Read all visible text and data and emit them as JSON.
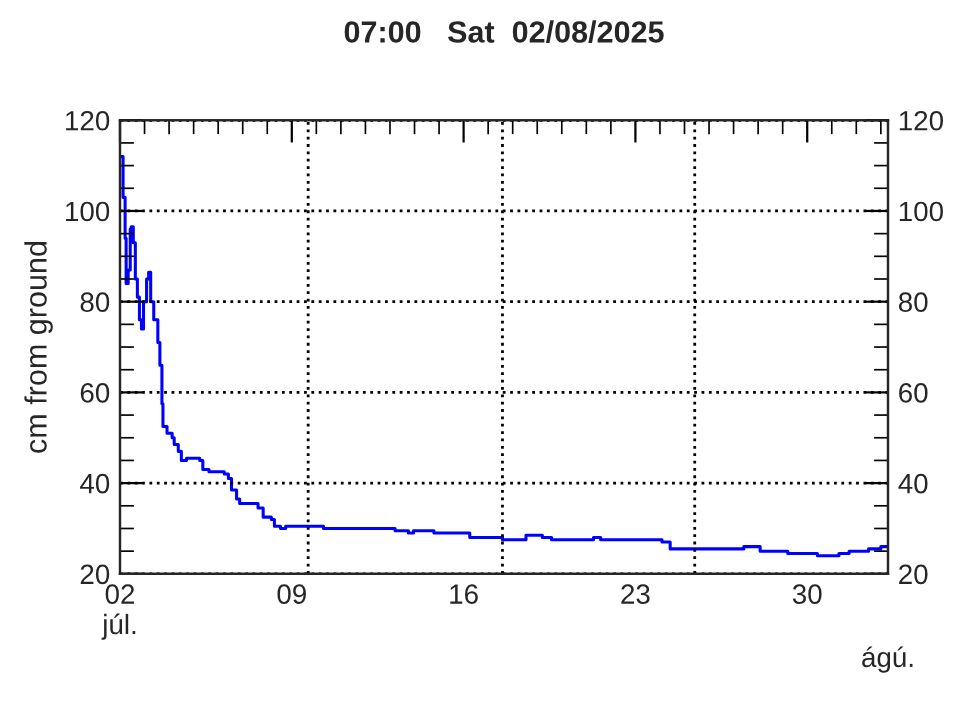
{
  "chart_data": {
    "type": "step",
    "title": "07:00   Sat  02/08/2025",
    "ylabel": "cm from ground",
    "x": [
      "2025-07-02T01:00",
      "2025-07-02T03:00",
      "2025-07-02T05:00",
      "2025-07-02T06:00",
      "2025-07-02T08:00",
      "2025-07-02T10:00",
      "2025-07-02T11:00",
      "2025-07-02T13:00",
      "2025-07-02T15:00",
      "2025-07-02T17:00",
      "2025-07-02T19:00",
      "2025-07-02T21:00",
      "2025-07-02T23:00",
      "2025-07-03T02:00",
      "2025-07-03T04:00",
      "2025-07-03T06:00",
      "2025-07-03T09:00",
      "2025-07-03T13:00",
      "2025-07-03T15:00",
      "2025-07-03T17:00",
      "2025-07-03T18:00",
      "2025-07-03T22:00",
      "2025-07-04T03:00",
      "2025-07-04T05:00",
      "2025-07-04T09:00",
      "2025-07-04T12:00",
      "2025-07-04T17:00",
      "2025-07-05T06:00",
      "2025-07-05T09:00",
      "2025-07-05T15:00",
      "2025-07-06T06:00",
      "2025-07-06T10:00",
      "2025-07-06T13:00",
      "2025-07-06T18:00",
      "2025-07-06T21:00",
      "2025-07-07T09:00",
      "2025-07-07T15:00",
      "2025-07-07T20:00",
      "2025-07-08T04:00",
      "2025-07-08T07:00",
      "2025-07-08T13:00",
      "2025-07-08T18:00",
      "2025-07-09T02:00",
      "2025-07-10T04:00",
      "2025-07-10T07:00",
      "2025-07-13T03:00",
      "2025-07-13T05:00",
      "2025-07-13T18:00",
      "2025-07-13T23:00",
      "2025-07-14T19:00",
      "2025-07-15T21:00",
      "2025-07-16T06:00",
      "2025-07-17T14:00",
      "2025-07-18T10:00",
      "2025-07-18T13:00",
      "2025-07-19T05:00",
      "2025-07-19T14:00",
      "2025-07-21T05:00",
      "2025-07-21T07:00",
      "2025-07-21T14:00",
      "2025-07-23T05:00",
      "2025-07-24T02:00",
      "2025-07-24T10:00",
      "2025-07-27T07:00",
      "2025-07-27T10:00",
      "2025-07-28T02:00",
      "2025-07-29T05:00",
      "2025-07-30T10:00",
      "2025-07-31T07:00",
      "2025-07-31T17:00",
      "2025-08-01T12:00",
      "2025-08-02T00:00",
      "2025-08-02T07:00"
    ],
    "series": [
      {
        "color": "#0000ff",
        "values": [
          112,
          103,
          94,
          84,
          87,
          96,
          96.5,
          93,
          85,
          81,
          76,
          74,
          80,
          85,
          86.5,
          80,
          76,
          71,
          66,
          57.5,
          52.5,
          51,
          50,
          48.5,
          47,
          45,
          45.5,
          45,
          43,
          42.5,
          42,
          41,
          38.5,
          36.5,
          35.5,
          35.5,
          34.5,
          32.5,
          32,
          30.5,
          30,
          30.5,
          30.5,
          30.5,
          30,
          30,
          29.5,
          29,
          29.5,
          29,
          29,
          28,
          27.5,
          27.5,
          28.5,
          28,
          27.5,
          27.5,
          28,
          27.5,
          27.5,
          27,
          25.5,
          25.5,
          26,
          25,
          24.5,
          24,
          24.5,
          25,
          25.5,
          26,
          26
        ]
      }
    ],
    "xlim": [
      "2025-07-02T00:00",
      "2025-08-02T07:00"
    ],
    "xticks": [
      {
        "value": "2025-07-02",
        "label": "02\njúl."
      },
      {
        "value": "2025-07-09",
        "label": "09"
      },
      {
        "value": "2025-07-16",
        "label": "16"
      },
      {
        "value": "2025-07-23",
        "label": "23"
      },
      {
        "value": "2025-07-30",
        "label": "30"
      }
    ],
    "annotations": [
      "ágú."
    ],
    "ylim": [
      20,
      120
    ],
    "yticks": [
      20,
      40,
      60,
      80,
      100,
      120
    ],
    "y2lim": [
      20,
      120
    ],
    "y2ticks": [
      20,
      40,
      60,
      80,
      100,
      120
    ],
    "grid": "y",
    "line_style": "solid",
    "marker": "none",
    "ref_lines": [
      {
        "axis": "x",
        "value": "2025-07-09T16:00",
        "line_style": "dotted",
        "color": "#000000"
      },
      {
        "axis": "x",
        "value": "2025-07-17T14:00",
        "line_style": "dotted",
        "color": "#000000"
      },
      {
        "axis": "x",
        "value": "2025-07-25T10:00",
        "line_style": "dotted",
        "color": "#000000"
      }
    ]
  }
}
